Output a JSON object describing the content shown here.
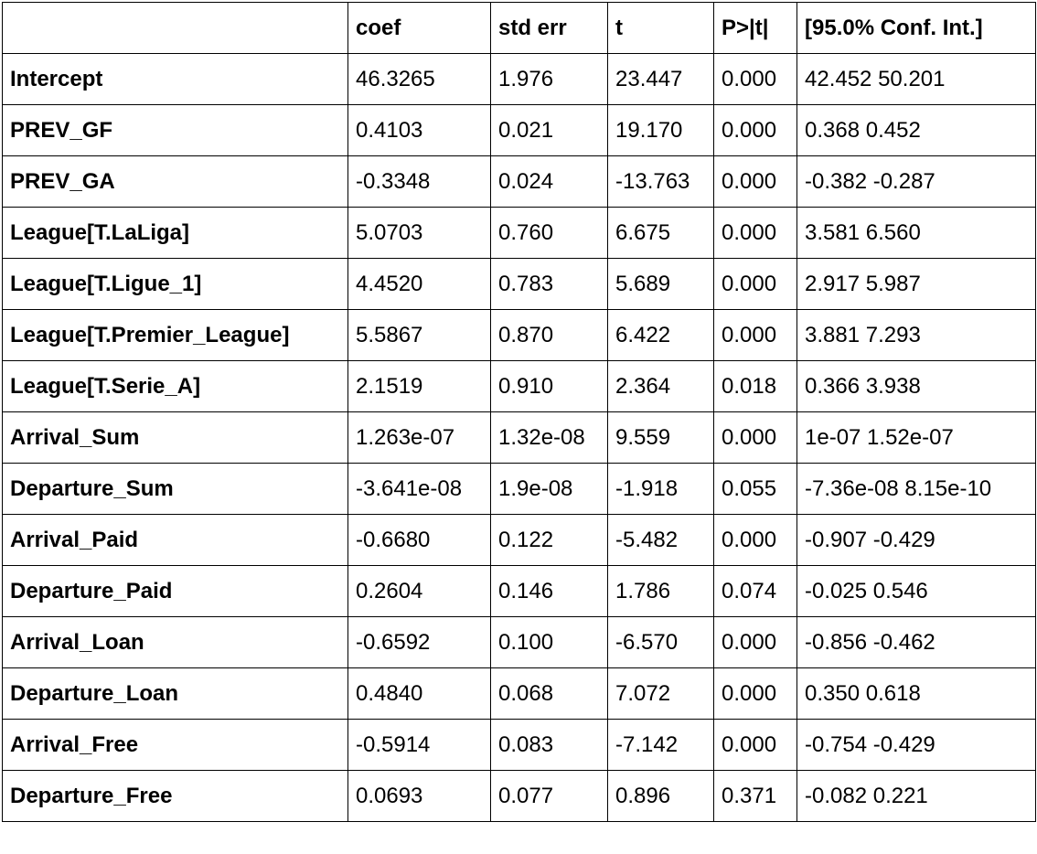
{
  "table": {
    "headers": [
      "",
      "coef",
      "std err",
      "t",
      "P>|t|",
      "[95.0% Conf. Int.]"
    ],
    "rows": [
      {
        "name": "Intercept",
        "coef": "46.3265",
        "std_err": "1.976",
        "t": "23.447",
        "p": "0.000",
        "ci": "42.452 50.201"
      },
      {
        "name": "PREV_GF",
        "coef": "0.4103",
        "std_err": "0.021",
        "t": "19.170",
        "p": "0.000",
        "ci": "0.368 0.452"
      },
      {
        "name": "PREV_GA",
        "coef": "-0.3348",
        "std_err": "0.024",
        "t": "-13.763",
        "p": "0.000",
        "ci": "-0.382 -0.287"
      },
      {
        "name": "League[T.LaLiga]",
        "coef": "5.0703",
        "std_err": "0.760",
        "t": "6.675",
        "p": "0.000",
        "ci": "3.581 6.560"
      },
      {
        "name": "League[T.Ligue_1]",
        "coef": "4.4520",
        "std_err": "0.783",
        "t": "5.689",
        "p": "0.000",
        "ci": "2.917 5.987"
      },
      {
        "name": "League[T.Premier_League]",
        "coef": "5.5867",
        "std_err": "0.870",
        "t": "6.422",
        "p": "0.000",
        "ci": "3.881 7.293"
      },
      {
        "name": "League[T.Serie_A]",
        "coef": "2.1519",
        "std_err": "0.910",
        "t": "2.364",
        "p": "0.018",
        "ci": "0.366 3.938"
      },
      {
        "name": "Arrival_Sum",
        "coef": "1.263e-07",
        "std_err": "1.32e-08",
        "t": "9.559",
        "p": "0.000",
        "ci": "1e-07 1.52e-07"
      },
      {
        "name": "Departure_Sum",
        "coef": "-3.641e-08",
        "std_err": "1.9e-08",
        "t": "-1.918",
        "p": "0.055",
        "ci": "-7.36e-08 8.15e-10"
      },
      {
        "name": "Arrival_Paid",
        "coef": "-0.6680",
        "std_err": "0.122",
        "t": "-5.482",
        "p": "0.000",
        "ci": "-0.907 -0.429"
      },
      {
        "name": "Departure_Paid",
        "coef": "0.2604",
        "std_err": "0.146",
        "t": "1.786",
        "p": "0.074",
        "ci": "-0.025 0.546"
      },
      {
        "name": "Arrival_Loan",
        "coef": "-0.6592",
        "std_err": "0.100",
        "t": "-6.570",
        "p": "0.000",
        "ci": "-0.856 -0.462"
      },
      {
        "name": "Departure_Loan",
        "coef": "0.4840",
        "std_err": "0.068",
        "t": "7.072",
        "p": "0.000",
        "ci": "0.350 0.618"
      },
      {
        "name": "Arrival_Free",
        "coef": "-0.5914",
        "std_err": "0.083",
        "t": "-7.142",
        "p": "0.000",
        "ci": "-0.754 -0.429"
      },
      {
        "name": "Departure_Free",
        "coef": "0.0693",
        "std_err": "0.077",
        "t": "0.896",
        "p": "0.371",
        "ci": "-0.082 0.221"
      }
    ]
  }
}
